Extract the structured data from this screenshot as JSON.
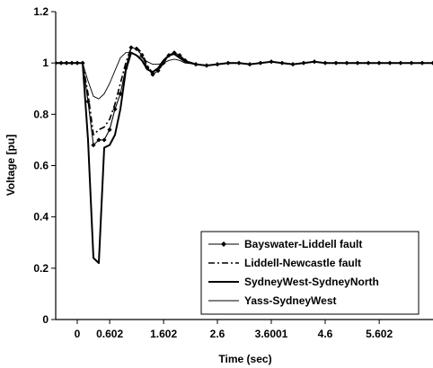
{
  "chart_data": {
    "type": "line",
    "title": "",
    "xlabel": "Time (sec)",
    "ylabel": "Voltage [pu]",
    "xlim": [
      -0.4,
      6.6
    ],
    "ylim": [
      0,
      1.2
    ],
    "x_ticks": [
      0,
      0.602,
      1.602,
      2.6,
      3.6001,
      4.6,
      5.602
    ],
    "x_tick_labels": [
      "0",
      "0.602",
      "1.602",
      "2.6",
      "3.6001",
      "4.6",
      "5.602"
    ],
    "y_ticks": [
      0,
      0.2,
      0.4,
      0.6,
      0.8,
      1,
      1.2
    ],
    "y_tick_labels": [
      "0",
      "0.2",
      "0.4",
      "0.6",
      "0.8",
      "1",
      "1.2"
    ],
    "grid": false,
    "legend_position": "bottom-right",
    "series": [
      {
        "name": "Bayswater-Liddell fault",
        "style": "marker-line",
        "color": "#000000",
        "x": [
          -0.4,
          -0.3,
          -0.2,
          -0.1,
          0,
          0.1,
          0.2,
          0.3,
          0.4,
          0.5,
          0.6,
          0.7,
          0.8,
          0.9,
          1.0,
          1.1,
          1.2,
          1.3,
          1.4,
          1.5,
          1.6,
          1.7,
          1.8,
          1.9,
          2.0,
          2.2,
          2.4,
          2.6,
          2.8,
          3.0,
          3.2,
          3.4,
          3.6,
          3.8,
          4.0,
          4.2,
          4.4,
          4.6,
          4.8,
          5.0,
          5.2,
          5.4,
          5.6,
          5.8,
          6.0,
          6.2,
          6.4,
          6.6
        ],
        "y": [
          1.0,
          1.0,
          1.0,
          1.0,
          1.0,
          1.0,
          0.85,
          0.68,
          0.7,
          0.7,
          0.74,
          0.82,
          0.88,
          0.98,
          1.06,
          1.055,
          1.03,
          0.98,
          0.955,
          0.97,
          1.0,
          1.03,
          1.04,
          1.03,
          1.01,
          0.995,
          0.99,
          0.995,
          1.0,
          1.0,
          0.995,
          1.0,
          1.005,
          1.0,
          0.995,
          1.0,
          1.005,
          1.0,
          1.0,
          1.0,
          1.0,
          1.0,
          1.0,
          1.0,
          1.0,
          1.0,
          1.0,
          1.0
        ]
      },
      {
        "name": "Liddell-Newcastle fault",
        "style": "dash-dot",
        "color": "#000000",
        "x": [
          -0.4,
          -0.2,
          0,
          0.1,
          0.2,
          0.3,
          0.4,
          0.5,
          0.6,
          0.7,
          0.8,
          0.9,
          1.0,
          1.1,
          1.2,
          1.3,
          1.4,
          1.5,
          1.6,
          1.7,
          1.8,
          1.9,
          2.0,
          2.2,
          2.4,
          2.6,
          2.8,
          3.0,
          3.2,
          3.4,
          3.6,
          3.8,
          4.0,
          4.2,
          4.4,
          4.6,
          4.8,
          5.0,
          5.2,
          5.4,
          5.6,
          5.8,
          6.0,
          6.2,
          6.4,
          6.6
        ],
        "y": [
          1.0,
          1.0,
          1.0,
          1.0,
          0.88,
          0.72,
          0.74,
          0.75,
          0.78,
          0.84,
          0.92,
          1.0,
          1.06,
          1.06,
          1.04,
          0.99,
          0.96,
          0.97,
          1.0,
          1.03,
          1.04,
          1.03,
          1.01,
          0.995,
          0.99,
          0.995,
          1.0,
          1.0,
          0.995,
          1.0,
          1.005,
          1.0,
          0.995,
          1.0,
          1.005,
          1.0,
          1.0,
          1.0,
          1.0,
          1.0,
          1.0,
          1.0,
          1.0,
          1.0,
          1.0,
          1.0
        ]
      },
      {
        "name": "SydneyWest-SydneyNorth",
        "style": "thick-line",
        "color": "#000000",
        "x": [
          -0.4,
          -0.2,
          0,
          0.1,
          0.2,
          0.3,
          0.4,
          0.5,
          0.6,
          0.7,
          0.8,
          0.9,
          1.0,
          1.1,
          1.2,
          1.3,
          1.4,
          1.5,
          1.6,
          1.7,
          1.8,
          1.9,
          2.0,
          2.2,
          2.4,
          2.6,
          2.8,
          3.0,
          3.2,
          3.4,
          3.6,
          3.8,
          4.0,
          4.2,
          4.4,
          4.6,
          4.8,
          5.0,
          5.2,
          5.4,
          5.6,
          5.8,
          6.0,
          6.2,
          6.4,
          6.6
        ],
        "y": [
          1.0,
          1.0,
          1.0,
          1.0,
          0.7,
          0.24,
          0.22,
          0.67,
          0.68,
          0.72,
          0.82,
          0.97,
          1.04,
          1.03,
          1.01,
          0.975,
          0.965,
          0.98,
          1.01,
          1.03,
          1.035,
          1.02,
          1.005,
          0.995,
          0.99,
          0.995,
          1.0,
          1.0,
          0.995,
          1.0,
          1.005,
          1.0,
          0.995,
          1.0,
          1.005,
          1.0,
          1.0,
          1.0,
          1.0,
          1.0,
          1.0,
          1.0,
          1.0,
          1.0,
          1.0,
          1.0
        ]
      },
      {
        "name": "Yass-SydneyWest",
        "style": "thin-line",
        "color": "#000000",
        "x": [
          -0.4,
          -0.2,
          0,
          0.1,
          0.2,
          0.3,
          0.4,
          0.5,
          0.6,
          0.7,
          0.8,
          0.9,
          1.0,
          1.1,
          1.2,
          1.3,
          1.4,
          1.5,
          1.6,
          1.7,
          1.8,
          1.9,
          2.0,
          2.2,
          2.4,
          2.6,
          2.8,
          3.0,
          3.2,
          3.4,
          3.6,
          3.8,
          4.0,
          4.2,
          4.4,
          4.6,
          4.8,
          5.0,
          5.2,
          5.4,
          5.6,
          5.8,
          6.0,
          6.2,
          6.4,
          6.6
        ],
        "y": [
          1.0,
          1.0,
          1.0,
          1.0,
          0.93,
          0.87,
          0.86,
          0.88,
          0.92,
          0.97,
          1.02,
          1.04,
          1.04,
          1.03,
          1.02,
          1.005,
          0.995,
          0.995,
          1.0,
          1.01,
          1.015,
          1.01,
          1.0,
          0.995,
          0.99,
          0.995,
          1.0,
          1.0,
          0.995,
          1.0,
          1.005,
          1.0,
          0.995,
          1.0,
          1.005,
          1.0,
          1.0,
          1.0,
          1.0,
          1.0,
          1.0,
          1.0,
          1.0,
          1.0,
          1.0,
          1.0
        ]
      }
    ]
  }
}
